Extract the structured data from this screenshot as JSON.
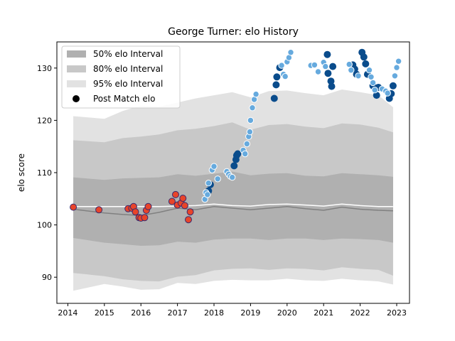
{
  "chart_data": {
    "type": "scatter",
    "title": "George Turner: elo History",
    "xlabel": "",
    "ylabel": "elo score",
    "xlim": [
      2013.7,
      2023.35
    ],
    "ylim": [
      85,
      135
    ],
    "x_ticks": [
      2014,
      2015,
      2016,
      2017,
      2018,
      2019,
      2020,
      2021,
      2022,
      2023
    ],
    "y_ticks": [
      90,
      100,
      110,
      120,
      130
    ],
    "legend": {
      "position": "top-left",
      "entries": [
        "50% elo Interval",
        "80% elo Interval",
        "95% elo Interval",
        "Post Match elo"
      ]
    },
    "colors": {
      "band50": "#b0b0b0",
      "band80": "#c8c8c8",
      "band95": "#e2e2e2",
      "median_line": "#808080",
      "mean_line": "#ffffff",
      "point_red": "#e8442a",
      "point_red_edge": "#3a2a6e",
      "point_dark": "#0a4c8c",
      "point_light": "#66aade",
      "point_light_edge": "#ffffff"
    },
    "bands": {
      "x": [
        2014.15,
        2015.0,
        2015.5,
        2016.0,
        2016.5,
        2017.0,
        2017.5,
        2018.0,
        2018.5,
        2019.0,
        2019.5,
        2020.0,
        2020.5,
        2021.0,
        2021.5,
        2022.0,
        2022.5,
        2022.9
      ],
      "p95_upper": [
        120.8,
        120.3,
        121.8,
        122.8,
        122.6,
        123.4,
        124.2,
        124.8,
        125.4,
        124.4,
        125.6,
        125.7,
        125.2,
        124.8,
        125.9,
        125.4,
        124.8,
        122.5
      ],
      "p80_upper": [
        116.2,
        115.8,
        116.6,
        116.9,
        117.3,
        118.1,
        118.4,
        118.9,
        119.6,
        118.2,
        119.1,
        119.3,
        118.8,
        118.5,
        119.4,
        119.2,
        118.6,
        117.7
      ],
      "p50_upper": [
        109.1,
        108.6,
        108.9,
        109.0,
        109.1,
        109.7,
        109.4,
        109.8,
        110.2,
        109.5,
        109.8,
        109.9,
        109.4,
        109.3,
        109.9,
        109.7,
        109.5,
        109.2
      ],
      "p50_lower": [
        97.5,
        96.6,
        96.3,
        96.0,
        96.1,
        96.8,
        96.6,
        97.2,
        97.4,
        97.4,
        97.1,
        97.4,
        97.4,
        97.1,
        97.4,
        97.3,
        97.1,
        96.6
      ],
      "p80_lower": [
        90.8,
        90.2,
        89.6,
        89.3,
        89.2,
        90.1,
        90.4,
        91.3,
        91.6,
        91.7,
        91.4,
        91.7,
        91.6,
        91.3,
        91.9,
        91.6,
        91.4,
        90.3
      ],
      "p95_lower": [
        87.4,
        88.7,
        88.2,
        87.6,
        87.7,
        88.9,
        88.7,
        89.3,
        89.5,
        89.4,
        89.4,
        89.7,
        89.4,
        89.3,
        89.7,
        89.4,
        89.2,
        88.6
      ],
      "median": [
        103.0,
        102.3,
        102.0,
        101.8,
        102.4,
        103.2,
        102.9,
        103.5,
        103.2,
        102.9,
        103.2,
        103.5,
        103.1,
        102.8,
        103.4,
        103.0,
        102.8,
        102.7
      ],
      "mean": [
        103.5,
        103.5,
        103.5,
        103.5,
        103.5,
        103.6,
        103.7,
        104.0,
        103.7,
        103.6,
        103.9,
        104.0,
        103.8,
        103.6,
        104.0,
        103.7,
        103.5,
        103.5
      ]
    },
    "series": [
      {
        "style": "red",
        "points": [
          [
            2014.15,
            103.4
          ],
          [
            2014.85,
            102.9
          ],
          [
            2015.65,
            103.1
          ],
          [
            2015.75,
            103.2
          ],
          [
            2015.8,
            103.5
          ],
          [
            2015.85,
            102.5
          ],
          [
            2015.95,
            101.4
          ],
          [
            2016.0,
            101.3
          ],
          [
            2016.1,
            101.4
          ],
          [
            2016.15,
            102.8
          ],
          [
            2016.2,
            103.5
          ],
          [
            2016.85,
            104.5
          ],
          [
            2016.95,
            105.8
          ],
          [
            2017.0,
            103.8
          ],
          [
            2017.1,
            104.2
          ],
          [
            2017.15,
            105.1
          ],
          [
            2017.2,
            103.7
          ],
          [
            2017.3,
            101.0
          ],
          [
            2017.35,
            102.5
          ]
        ]
      },
      {
        "style": "dark",
        "points": [
          [
            2017.85,
            106.5
          ],
          [
            2017.9,
            107.7
          ],
          [
            2018.55,
            111.3
          ],
          [
            2018.6,
            112.5
          ],
          [
            2018.62,
            113.3
          ],
          [
            2018.65,
            113.6
          ],
          [
            2019.65,
            124.2
          ],
          [
            2019.7,
            126.8
          ],
          [
            2019.72,
            128.3
          ],
          [
            2019.8,
            130.1
          ],
          [
            2021.1,
            132.6
          ],
          [
            2021.12,
            129.0
          ],
          [
            2021.2,
            127.5
          ],
          [
            2021.22,
            126.5
          ],
          [
            2021.25,
            130.3
          ],
          [
            2021.8,
            130.6
          ],
          [
            2021.85,
            129.8
          ],
          [
            2021.9,
            128.8
          ],
          [
            2022.05,
            133.0
          ],
          [
            2022.1,
            132.1
          ],
          [
            2022.15,
            130.8
          ],
          [
            2022.2,
            128.8
          ],
          [
            2022.35,
            126.6
          ],
          [
            2022.45,
            124.8
          ],
          [
            2022.5,
            126.3
          ],
          [
            2022.8,
            124.2
          ],
          [
            2022.85,
            125.1
          ],
          [
            2022.9,
            126.6
          ]
        ]
      },
      {
        "style": "light",
        "points": [
          [
            2017.75,
            104.9
          ],
          [
            2017.78,
            106.2
          ],
          [
            2017.82,
            105.8
          ],
          [
            2017.85,
            108.0
          ],
          [
            2017.95,
            110.5
          ],
          [
            2018.0,
            111.2
          ],
          [
            2018.1,
            108.8
          ],
          [
            2018.35,
            110.2
          ],
          [
            2018.4,
            109.7
          ],
          [
            2018.45,
            109.3
          ],
          [
            2018.5,
            109.1
          ],
          [
            2018.8,
            114.3
          ],
          [
            2018.85,
            113.6
          ],
          [
            2018.9,
            115.5
          ],
          [
            2018.95,
            116.9
          ],
          [
            2018.98,
            117.8
          ],
          [
            2019.0,
            120.0
          ],
          [
            2019.05,
            122.4
          ],
          [
            2019.1,
            124.0
          ],
          [
            2019.15,
            125.0
          ],
          [
            2019.85,
            130.5
          ],
          [
            2019.9,
            128.8
          ],
          [
            2019.95,
            128.4
          ],
          [
            2020.0,
            131.2
          ],
          [
            2020.05,
            132.0
          ],
          [
            2020.1,
            133.0
          ],
          [
            2020.65,
            130.5
          ],
          [
            2020.75,
            130.6
          ],
          [
            2020.85,
            129.3
          ],
          [
            2021.0,
            131.1
          ],
          [
            2021.05,
            130.3
          ],
          [
            2021.7,
            130.7
          ],
          [
            2021.75,
            129.6
          ],
          [
            2021.95,
            128.5
          ],
          [
            2022.25,
            129.6
          ],
          [
            2022.3,
            128.3
          ],
          [
            2022.35,
            127.2
          ],
          [
            2022.4,
            125.8
          ],
          [
            2022.6,
            126.0
          ],
          [
            2022.7,
            125.6
          ],
          [
            2022.75,
            125.2
          ],
          [
            2022.95,
            128.5
          ],
          [
            2023.0,
            130.1
          ],
          [
            2023.05,
            131.3
          ]
        ]
      }
    ]
  }
}
